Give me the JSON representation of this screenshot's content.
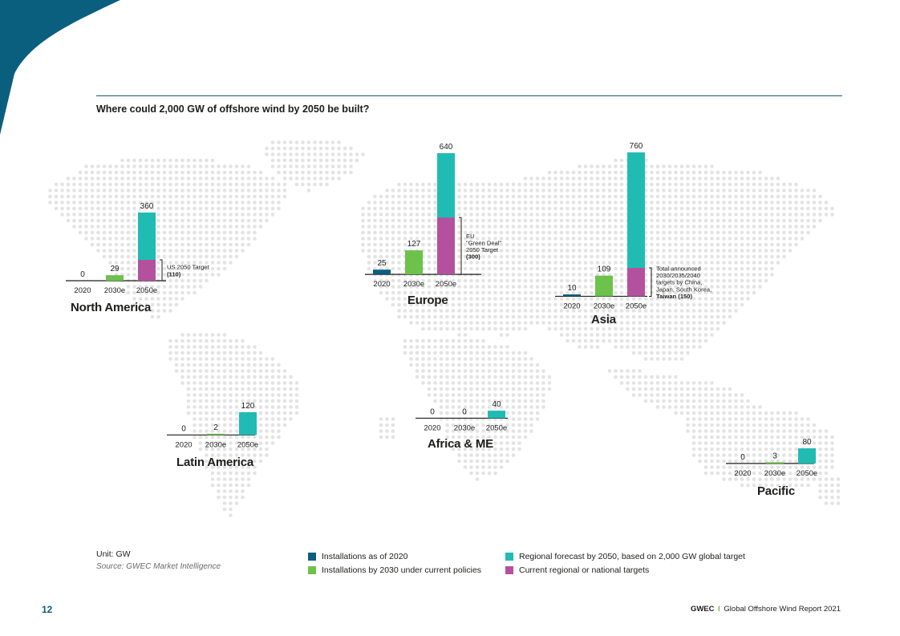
{
  "title": "Where could 2,000 GW of offshore wind by 2050 be built?",
  "unit": "Unit: GW",
  "source": "Source: GWEC Market Intelligence",
  "page_number": "12",
  "footer": {
    "brand": "GWEC",
    "separator": "I",
    "report": "Global Offshore Wind Report 2021"
  },
  "colors": {
    "installed_2020": "#0b5f7e",
    "installed_2030": "#6cc24a",
    "forecast_2050": "#20bcb4",
    "targets": "#b4519e",
    "map_dots": "#e3e3e3",
    "accent": "#0b5f7e"
  },
  "legend": [
    {
      "label": "Installations as of 2020",
      "color": "#0b5f7e"
    },
    {
      "label": "Installations by 2030 under current policies",
      "color": "#6cc24a"
    },
    {
      "label": "Regional forecast by 2050, based on 2,000 GW global target",
      "color": "#20bcb4"
    },
    {
      "label": "Current regional or national targets",
      "color": "#b4519e"
    }
  ],
  "chart_data": [
    {
      "type": "bar",
      "region": "North America",
      "categories": [
        "2020",
        "2030e",
        "2050e"
      ],
      "values": [
        0,
        29,
        360
      ],
      "target": 110,
      "target_note": [
        "US 2050 Target",
        "(110)"
      ]
    },
    {
      "type": "bar",
      "region": "Europe",
      "categories": [
        "2020",
        "2030e",
        "2050e"
      ],
      "values": [
        25,
        127,
        640
      ],
      "target": 300,
      "target_note": [
        "EU",
        "\"Green Deal\"",
        "2050 Target",
        "(300)"
      ]
    },
    {
      "type": "bar",
      "region": "Asia",
      "categories": [
        "2020",
        "2030e",
        "2050e"
      ],
      "values": [
        10,
        109,
        760
      ],
      "target": 150,
      "target_note": [
        "Total announced",
        "2030/2035/2040",
        "targets by China,",
        "Japan, South Korea,",
        "Taiwan (150)"
      ]
    },
    {
      "type": "bar",
      "region": "Latin America",
      "categories": [
        "2020",
        "2030e",
        "2050e"
      ],
      "values": [
        0,
        2,
        120
      ]
    },
    {
      "type": "bar",
      "region": "Africa & ME",
      "categories": [
        "2020",
        "2030e",
        "2050e"
      ],
      "values": [
        0,
        0,
        40
      ]
    },
    {
      "type": "bar",
      "region": "Pacific",
      "categories": [
        "2020",
        "2030e",
        "2050e"
      ],
      "values": [
        0,
        3,
        80
      ]
    }
  ]
}
